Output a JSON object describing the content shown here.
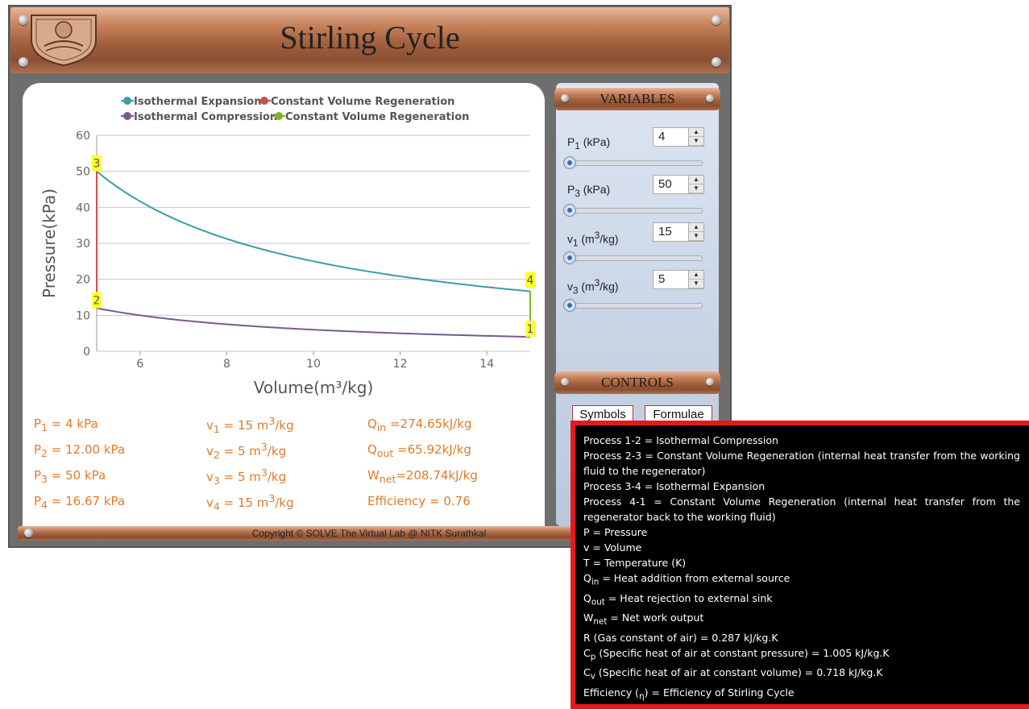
{
  "app": {
    "title": "Stirling Cycle",
    "copyright": "Copyright © SOLVE The Virtual Lab @ NITK Surathkal"
  },
  "chart_data": {
    "type": "line",
    "xlabel": "Volume(m³/kg)",
    "ylabel": "Pressure(kPa)",
    "xlim": [
      5,
      15
    ],
    "ylim": [
      0,
      60
    ],
    "x_ticks": [
      6,
      8,
      10,
      12,
      14
    ],
    "y_ticks": [
      0,
      10,
      20,
      30,
      40,
      50,
      60
    ],
    "grid": "horizontal",
    "legend_position": "top",
    "series": [
      {
        "name": "Isothermal Expansion",
        "color": "#3a9ea8",
        "x": [
          5,
          6,
          7,
          8,
          9,
          10,
          11,
          12,
          13,
          14,
          15
        ],
        "y": [
          50,
          41.67,
          35.71,
          31.25,
          27.78,
          25,
          22.73,
          20.83,
          19.23,
          17.86,
          16.67
        ]
      },
      {
        "name": "Constant Volume Regeneration",
        "color": "#c9504d",
        "x": [
          5,
          5
        ],
        "y": [
          12,
          50
        ]
      },
      {
        "name": "Isothermal Compression",
        "color": "#7b5a8c",
        "x": [
          5,
          6,
          7,
          8,
          9,
          10,
          11,
          12,
          13,
          14,
          15
        ],
        "y": [
          12,
          10,
          8.57,
          7.5,
          6.67,
          6,
          5.45,
          5,
          4.62,
          4.29,
          4
        ]
      },
      {
        "name": "Constant Volume Regeneration",
        "color": "#7fb226",
        "x": [
          15,
          15
        ],
        "y": [
          4,
          16.67
        ]
      }
    ],
    "point_labels": [
      {
        "label": "1",
        "x": 15,
        "y": 4
      },
      {
        "label": "2",
        "x": 5,
        "y": 12
      },
      {
        "label": "3",
        "x": 5,
        "y": 50
      },
      {
        "label": "4",
        "x": 15,
        "y": 16.67
      }
    ]
  },
  "results": {
    "p1": {
      "sym": "P",
      "sub": "1",
      "text": " = 4 kPa"
    },
    "p2": {
      "sym": "P",
      "sub": "2",
      "text": " = 12.00 kPa"
    },
    "p3": {
      "sym": "P",
      "sub": "3",
      "text": " = 50 kPa"
    },
    "p4": {
      "sym": "P",
      "sub": "4",
      "text": " = 16.67 kPa"
    },
    "v1": {
      "sym": "v",
      "sub": "1",
      "text": " = 15 m",
      "sup": "3",
      "tail": "/kg"
    },
    "v2": {
      "sym": "v",
      "sub": "2",
      "text": " = 5 m",
      "sup": "3",
      "tail": "/kg"
    },
    "v3": {
      "sym": "v",
      "sub": "3",
      "text": " = 5 m",
      "sup": "3",
      "tail": "/kg"
    },
    "v4": {
      "sym": "v",
      "sub": "4",
      "text": " = 15 m",
      "sup": "3",
      "tail": "/kg"
    },
    "qin": {
      "sym": "Q",
      "sub": "in",
      "text": " =274.65kJ/kg"
    },
    "qout": {
      "sym": "Q",
      "sub": "out",
      "text": " =65.92kJ/kg"
    },
    "wnet": {
      "sym": "W",
      "sub": "net",
      "text": "=208.74kJ/kg"
    },
    "eff": "Efficiency = 0.76"
  },
  "variables": {
    "header": "VARIABLES",
    "items": [
      {
        "sym": "P",
        "sub": "1",
        "unit": " (kPa)",
        "value": "4",
        "level": 0.0
      },
      {
        "sym": "P",
        "sub": "3",
        "unit": " (kPa)",
        "value": "50",
        "level": 0.0
      },
      {
        "sym": "v",
        "sub": "1",
        "unit": " (m",
        "sup": "3",
        "tail": "/kg)",
        "value": "15",
        "level": 0.0
      },
      {
        "sym": "v",
        "sub": "3",
        "unit": " (m",
        "sup": "3",
        "tail": "/kg)",
        "value": "5",
        "level": 0.0
      }
    ]
  },
  "controls": {
    "header": "CONTROLS",
    "symbols_label": "Symbols",
    "formulae_label": "Formulae"
  },
  "formulae": [
    {
      "text": "Process 1-2 = Isothermal Compression"
    },
    {
      "text": "Process 2-3 = Constant Volume Regeneration (internal heat transfer from the working fluid to the regenerator)"
    },
    {
      "text": "Process 3-4 = Isothermal Expansion"
    },
    {
      "text": "Process 4-1 = Constant Volume Regeneration (internal heat transfer from the regenerator back to the working fluid)"
    },
    {
      "text": "P = Pressure"
    },
    {
      "text": "v = Volume"
    },
    {
      "text": "T = Temperature (K)"
    },
    {
      "pre": "Q",
      "sub": "in",
      "text": " = Heat addition from external source"
    },
    {
      "pre": "Q",
      "sub": "out",
      "text": " = Heat rejection to external sink"
    },
    {
      "pre": "W",
      "sub": "net",
      "text": " = Net work output"
    },
    {
      "text": "R (Gas constant of air) = 0.287 kJ/kg.K"
    },
    {
      "pre": "C",
      "sub": "p",
      "text": " (Specific heat of air at constant pressure) = 1.005 kJ/kg.K"
    },
    {
      "pre": "C",
      "sub": "v",
      "text": " (Specific heat of air at constant volume) = 0.718 kJ/kg.K"
    },
    {
      "pre": "Efficiency (",
      "sub": "η",
      "text": ") = Efficiency of Stirling Cycle"
    }
  ]
}
